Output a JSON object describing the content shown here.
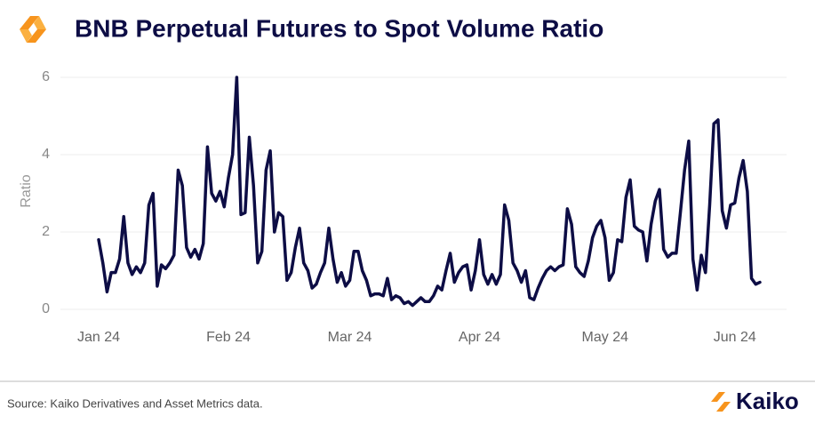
{
  "chart_data": {
    "type": "line",
    "title": "BNB Perpetual Futures to Spot Volume Ratio",
    "ylabel": "Ratio",
    "source": "Source: Kaiko Derivatives and Asset Metrics data.",
    "brand": "Kaiko",
    "series": [
      {
        "name": "Ratio",
        "color": "#0d0d45",
        "values": [
          1.8,
          1.2,
          0.45,
          0.95,
          0.95,
          1.3,
          2.4,
          1.2,
          0.9,
          1.1,
          0.95,
          1.2,
          2.7,
          3.0,
          0.6,
          1.15,
          1.05,
          1.2,
          1.4,
          3.6,
          3.2,
          1.6,
          1.35,
          1.55,
          1.3,
          1.7,
          4.2,
          3.0,
          2.8,
          3.05,
          2.65,
          3.4,
          4.0,
          6.0,
          2.45,
          2.5,
          4.45,
          3.2,
          1.2,
          1.5,
          3.6,
          4.1,
          2.0,
          2.5,
          2.4,
          0.75,
          0.95,
          1.6,
          2.1,
          1.2,
          1.0,
          0.55,
          0.65,
          0.95,
          1.2,
          2.1,
          1.3,
          0.7,
          0.95,
          0.6,
          0.75,
          1.5,
          1.5,
          1.0,
          0.75,
          0.35,
          0.4,
          0.4,
          0.35,
          0.8,
          0.25,
          0.35,
          0.3,
          0.15,
          0.2,
          0.1,
          0.2,
          0.3,
          0.2,
          0.2,
          0.35,
          0.6,
          0.5,
          1.0,
          1.45,
          0.7,
          0.95,
          1.1,
          1.15,
          0.5,
          1.0,
          1.8,
          0.9,
          0.65,
          0.9,
          0.65,
          0.9,
          2.7,
          2.3,
          1.2,
          1.0,
          0.7,
          1.0,
          0.3,
          0.25,
          0.55,
          0.8,
          1.0,
          1.1,
          1.0,
          1.1,
          1.15,
          2.6,
          2.2,
          1.1,
          0.95,
          0.85,
          1.25,
          1.85,
          2.15,
          2.3,
          1.85,
          0.75,
          0.95,
          1.8,
          1.75,
          2.9,
          3.35,
          2.15,
          2.05,
          2.0,
          1.25,
          2.2,
          2.8,
          3.1,
          1.55,
          1.35,
          1.45,
          1.45,
          2.5,
          3.6,
          4.35,
          1.3,
          0.5,
          1.4,
          0.95,
          2.7,
          4.8,
          4.9,
          2.55,
          2.1,
          2.7,
          2.75,
          3.4,
          3.85,
          3.05,
          0.8,
          0.65,
          0.7
        ]
      }
    ],
    "xlim": [
      0,
      158
    ],
    "xticks": [
      {
        "value": 0,
        "label": "Jan 24"
      },
      {
        "value": 31,
        "label": "Feb 24"
      },
      {
        "value": 60,
        "label": "Mar 24"
      },
      {
        "value": 91,
        "label": "Apr 24"
      },
      {
        "value": 121,
        "label": "May 24"
      },
      {
        "value": 152,
        "label": "Jun 24"
      }
    ],
    "ylim": [
      0,
      6
    ],
    "yticks": [
      0,
      2,
      4,
      6
    ],
    "grid": true
  }
}
